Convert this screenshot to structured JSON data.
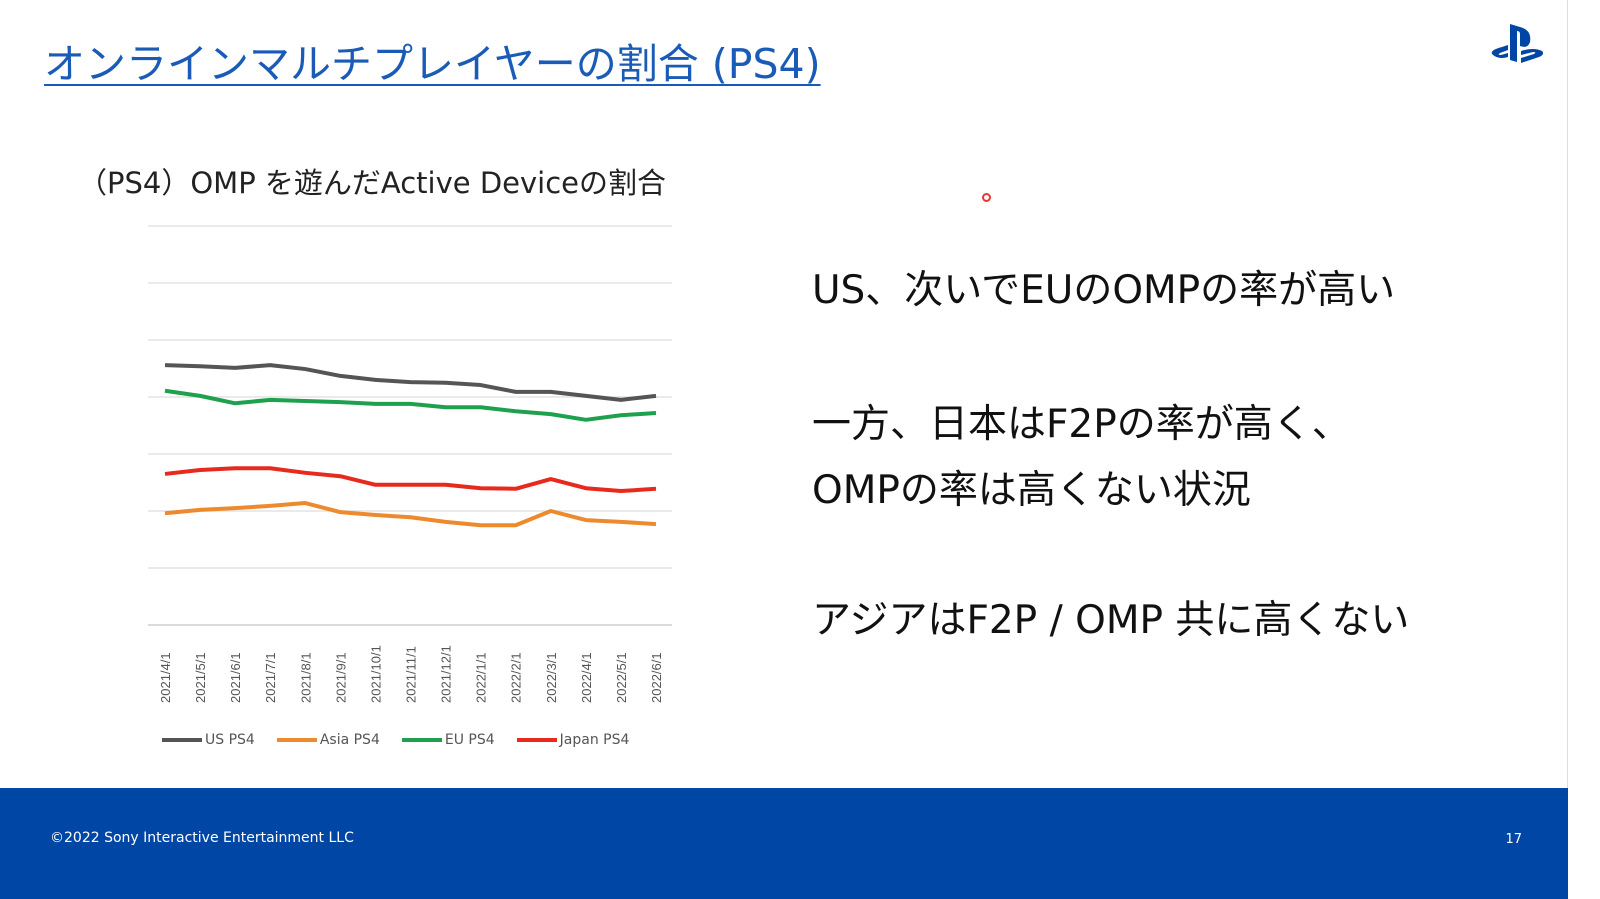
{
  "title": "オンラインマルチプレイヤーの割合 (PS4)",
  "logo": "PlayStation",
  "subtitle": "（PS4）OMP を遊んだActive Deviceの割合",
  "points": [
    "US、次いでEUのOMPの率が高い",
    "一方、日本はF2Pの率が高く、",
    "OMPの率は高くない状況",
    "アジアはF2P / OMP 共に高くない"
  ],
  "footer": {
    "copyright": "©2022 Sony Interactive Entertainment LLC",
    "page": "17"
  },
  "chart_data": {
    "type": "line",
    "title": "（PS4）OMP を遊んだActive Deviceの割合",
    "x": [
      "2021/4/1",
      "2021/5/1",
      "2021/6/1",
      "2021/7/1",
      "2021/8/1",
      "2021/9/1",
      "2021/10/1",
      "2021/11/1",
      "2021/12/1",
      "2022/1/1",
      "2022/2/1",
      "2022/3/1",
      "2022/4/1",
      "2022/5/1",
      "2022/6/1"
    ],
    "ylim": [
      0,
      7
    ],
    "y_units": "unlabeled (gridline units)",
    "grid": true,
    "legend": "bottom",
    "series": [
      {
        "name": "US PS4",
        "color": "#555555",
        "values": [
          4.56,
          4.54,
          4.51,
          4.56,
          4.49,
          4.37,
          4.3,
          4.26,
          4.25,
          4.21,
          4.09,
          4.09,
          4.02,
          3.95,
          4.02
        ]
      },
      {
        "name": "Asia PS4",
        "color": "#ee8a2e",
        "values": [
          1.96,
          2.02,
          2.05,
          2.09,
          2.14,
          1.98,
          1.93,
          1.89,
          1.81,
          1.75,
          1.75,
          2.0,
          1.84,
          1.81,
          1.77
        ]
      },
      {
        "name": "EU PS4",
        "color": "#1fa04e",
        "values": [
          4.11,
          4.02,
          3.89,
          3.95,
          3.93,
          3.91,
          3.88,
          3.88,
          3.82,
          3.82,
          3.75,
          3.7,
          3.6,
          3.68,
          3.72
        ]
      },
      {
        "name": "Japan PS4",
        "color": "#e82a1e",
        "values": [
          2.65,
          2.72,
          2.75,
          2.75,
          2.67,
          2.61,
          2.46,
          2.46,
          2.46,
          2.4,
          2.39,
          2.56,
          2.4,
          2.35,
          2.39
        ]
      }
    ]
  }
}
